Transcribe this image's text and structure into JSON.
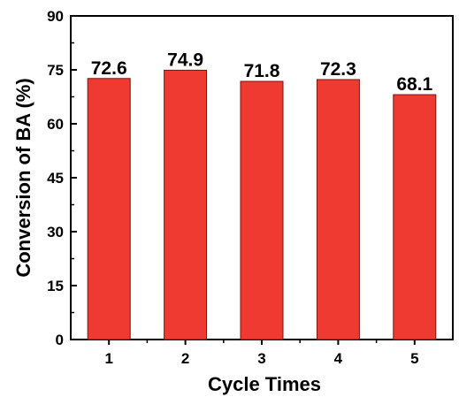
{
  "chart_data": {
    "type": "bar",
    "categories": [
      "1",
      "2",
      "3",
      "4",
      "5"
    ],
    "values": [
      72.6,
      74.9,
      71.8,
      72.3,
      68.1
    ],
    "data_labels": [
      "72.6",
      "74.9",
      "71.8",
      "72.3",
      "68.1"
    ],
    "xlabel": "Cycle Times",
    "ylabel": "Conversion of BA (%)",
    "ylim": [
      0,
      90
    ],
    "yticks": [
      "0",
      "15",
      "30",
      "45",
      "60",
      "75",
      "90"
    ],
    "grid": false,
    "bar_color": "#ee3a30",
    "bar_edge_color": "#7a1410"
  }
}
